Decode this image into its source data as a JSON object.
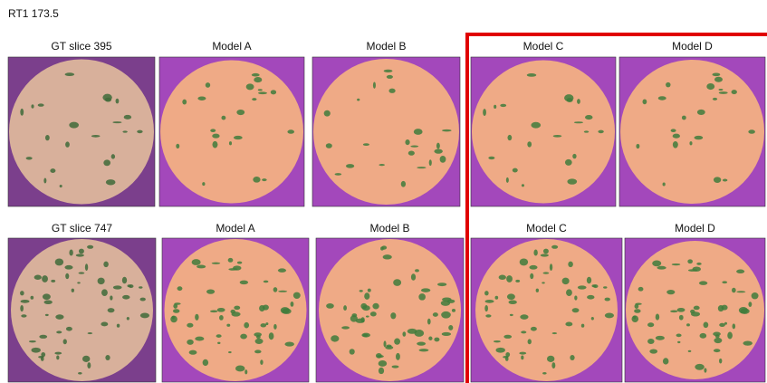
{
  "title": "RT1 173.5",
  "rows": [
    {
      "labels": [
        "GT slice 395",
        "Model A",
        "Model B",
        "Model C",
        "Model D"
      ]
    },
    {
      "labels": [
        "GT slice 747",
        "Model A",
        "Model B",
        "Model C",
        "Model D"
      ]
    }
  ]
}
